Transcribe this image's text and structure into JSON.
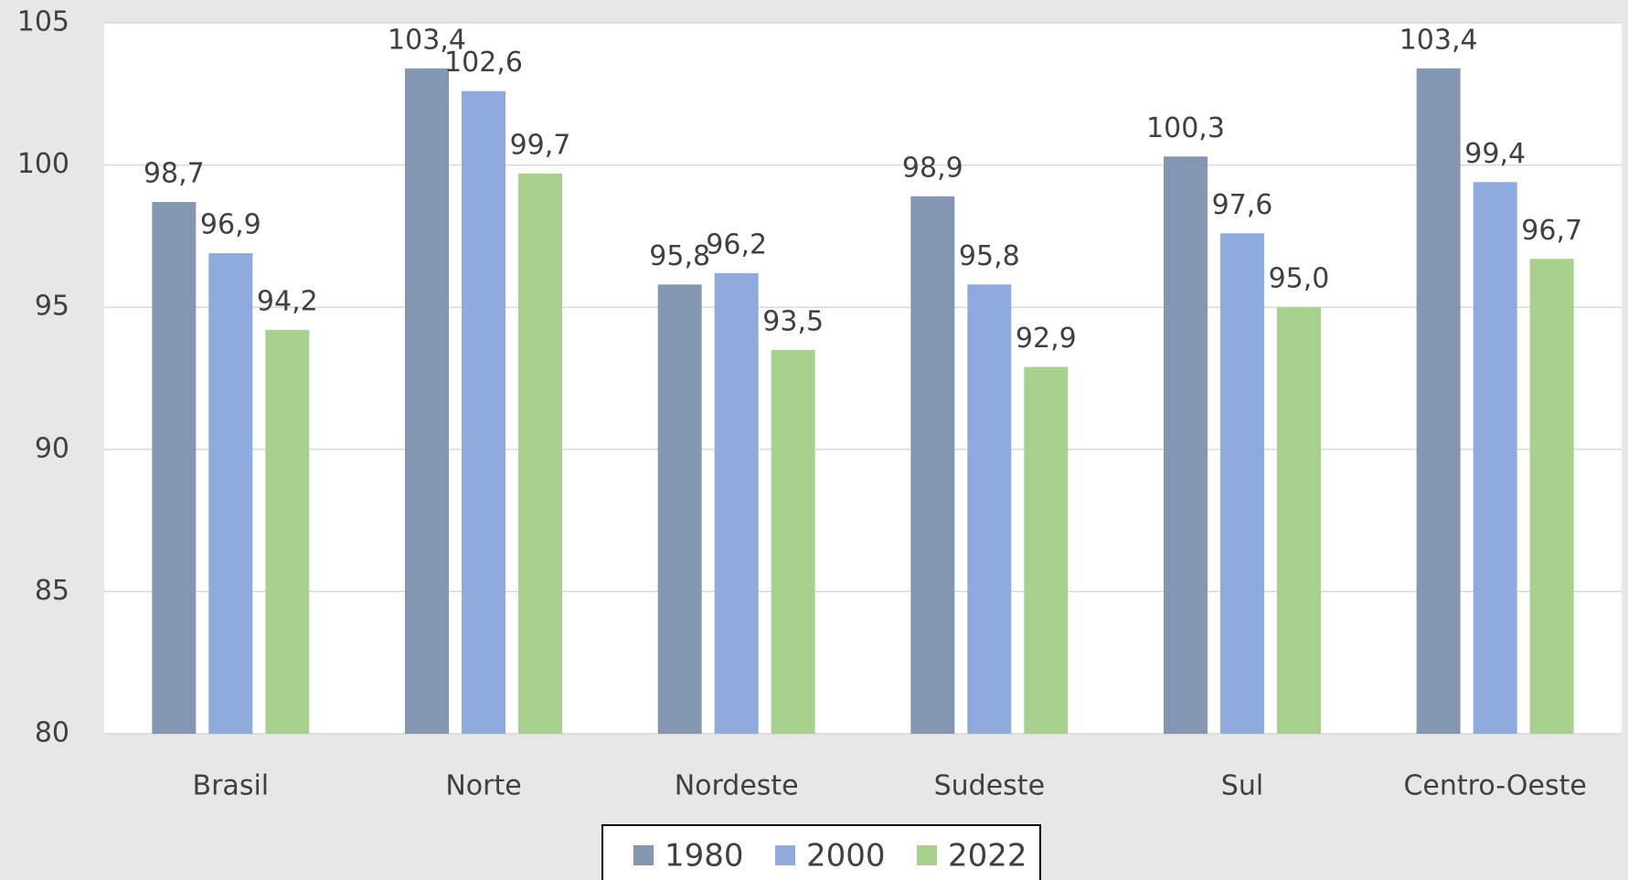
{
  "chart_data": {
    "type": "bar",
    "categories": [
      "Brasil",
      "Norte",
      "Nordeste",
      "Sudeste",
      "Sul",
      "Centro-Oeste"
    ],
    "series": [
      {
        "name": "1980",
        "color": "#8497b0",
        "values": [
          98.7,
          103.4,
          95.8,
          98.9,
          100.3,
          103.4
        ],
        "value_labels": [
          "98,7",
          "103,4",
          "95,8",
          "98,9",
          "100,3",
          "103,4"
        ]
      },
      {
        "name": "2000",
        "color": "#8faadc",
        "values": [
          96.9,
          102.6,
          96.2,
          95.8,
          97.6,
          99.4
        ],
        "value_labels": [
          "96,9",
          "102,6",
          "96,2",
          "95,8",
          "97,6",
          "99,4"
        ]
      },
      {
        "name": "2022",
        "color": "#a9d18e",
        "values": [
          94.2,
          99.7,
          93.5,
          92.9,
          95.0,
          96.7
        ],
        "value_labels": [
          "94,2",
          "99,7",
          "93,5",
          "92,9",
          "95,0",
          "96,7"
        ]
      }
    ],
    "ylim": [
      80,
      105
    ],
    "yticks": [
      80,
      85,
      90,
      95,
      100,
      105
    ],
    "grid": true,
    "legend": "bottom"
  }
}
